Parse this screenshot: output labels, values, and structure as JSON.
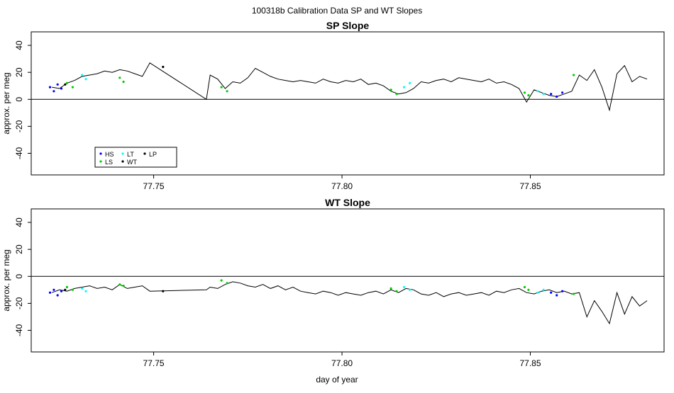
{
  "figure": {
    "title": "100318b   Calibration Data SP and WT Slopes",
    "xlabel": "day of year"
  },
  "chart_data": [
    {
      "type": "line",
      "title": "SP Slope",
      "ylabel": "approx. per meg",
      "xlim": [
        77.7175,
        77.8855
      ],
      "ylim": [
        -56,
        50
      ],
      "x_ticks": [
        "77.75",
        "77.80",
        "77.85"
      ],
      "x_tick_values": [
        77.75,
        77.8,
        77.85
      ],
      "y_ticks": [
        "-40",
        "-20",
        "0",
        "20",
        "40"
      ],
      "y_tick_values": [
        -40,
        -20,
        0,
        20,
        40
      ],
      "hline": 0,
      "legend": {
        "placement": "bottom-left",
        "entries": [
          {
            "label": "HS",
            "color": "#0000ff"
          },
          {
            "label": "LT",
            "color": "#00ffff"
          },
          {
            "label": "LP",
            "color": "#000000"
          },
          {
            "label": "LS",
            "color": "#00cc00"
          },
          {
            "label": "WT",
            "color": "#000000"
          }
        ]
      },
      "series": [
        {
          "key": "WT",
          "color": "#000000",
          "x": [
            77.723,
            77.725,
            77.727,
            77.729,
            77.731,
            77.733,
            77.735,
            77.737,
            77.739,
            77.741,
            77.743,
            77.745,
            77.747,
            77.749,
            77.764,
            77.765,
            77.767,
            77.769,
            77.771,
            77.773,
            77.775,
            77.777,
            77.779,
            77.781,
            77.783,
            77.785,
            77.787,
            77.789,
            77.791,
            77.793,
            77.795,
            77.797,
            77.799,
            77.801,
            77.803,
            77.805,
            77.807,
            77.809,
            77.811,
            77.813,
            77.815,
            77.817,
            77.819,
            77.821,
            77.823,
            77.825,
            77.827,
            77.829,
            77.831,
            77.833,
            77.835,
            77.837,
            77.839,
            77.841,
            77.843,
            77.845,
            77.847,
            77.849,
            77.851,
            77.853,
            77.855,
            77.857,
            77.859,
            77.861,
            77.863,
            77.865,
            77.867,
            77.869,
            77.871,
            77.873,
            77.875,
            77.877,
            77.879,
            77.881
          ],
          "y": [
            9,
            8,
            12,
            14,
            17,
            18,
            19,
            21,
            20,
            22,
            21,
            19,
            17,
            27,
            0,
            18,
            15,
            8,
            13,
            12,
            16,
            23,
            20,
            17,
            15,
            14,
            13,
            14,
            13,
            12,
            15,
            13,
            12,
            14,
            13,
            15,
            11,
            12,
            10,
            6,
            4,
            5,
            8,
            13,
            12,
            14,
            15,
            13,
            16,
            15,
            14,
            13,
            15,
            12,
            13,
            11,
            8,
            -2,
            7,
            5,
            3,
            2,
            4,
            6,
            18,
            14,
            22,
            9,
            -8,
            19,
            25,
            13,
            17,
            15
          ]
        },
        {
          "key": "HS",
          "color": "#0000ff",
          "x": [
            77.7225,
            77.7235,
            77.7245,
            77.7255,
            77.8555,
            77.857,
            77.8585
          ],
          "y": [
            9,
            6,
            11,
            8,
            4,
            2,
            5
          ]
        },
        {
          "key": "LS",
          "color": "#00cc00",
          "x": [
            77.727,
            77.7285,
            77.741,
            77.742,
            77.768,
            77.7695,
            77.813,
            77.8145,
            77.8485,
            77.8495,
            77.8615
          ],
          "y": [
            12,
            9,
            16,
            13,
            9,
            6,
            7,
            4,
            5,
            3,
            18
          ]
        },
        {
          "key": "LT",
          "color": "#00ffff",
          "x": [
            77.731,
            77.732,
            77.8165,
            77.818,
            77.852,
            77.8535
          ],
          "y": [
            18,
            15,
            9,
            12,
            6,
            4
          ]
        },
        {
          "key": "LP",
          "color": "#000000",
          "x": [
            77.7265,
            77.7525
          ],
          "y": [
            11,
            24
          ]
        }
      ]
    },
    {
      "type": "line",
      "title": "WT Slope",
      "ylabel": "approx. per meg",
      "xlim": [
        77.7175,
        77.8855
      ],
      "ylim": [
        -56,
        50
      ],
      "x_ticks": [
        "77.75",
        "77.80",
        "77.85"
      ],
      "x_tick_values": [
        77.75,
        77.8,
        77.85
      ],
      "y_ticks": [
        "-40",
        "-20",
        "0",
        "20",
        "40"
      ],
      "y_tick_values": [
        -40,
        -20,
        0,
        20,
        40
      ],
      "hline": 0,
      "series": [
        {
          "key": "WT",
          "color": "#000000",
          "x": [
            77.723,
            77.725,
            77.727,
            77.729,
            77.731,
            77.733,
            77.735,
            77.737,
            77.739,
            77.741,
            77.743,
            77.745,
            77.747,
            77.749,
            77.764,
            77.765,
            77.767,
            77.769,
            77.771,
            77.773,
            77.775,
            77.777,
            77.779,
            77.781,
            77.783,
            77.785,
            77.787,
            77.789,
            77.791,
            77.793,
            77.795,
            77.797,
            77.799,
            77.801,
            77.803,
            77.805,
            77.807,
            77.809,
            77.811,
            77.813,
            77.815,
            77.817,
            77.819,
            77.821,
            77.823,
            77.825,
            77.827,
            77.829,
            77.831,
            77.833,
            77.835,
            77.837,
            77.839,
            77.841,
            77.843,
            77.845,
            77.847,
            77.849,
            77.851,
            77.853,
            77.855,
            77.857,
            77.859,
            77.861,
            77.863,
            77.865,
            77.867,
            77.869,
            77.871,
            77.873,
            77.875,
            77.877,
            77.879,
            77.881
          ],
          "y": [
            -12,
            -10,
            -11,
            -9,
            -8,
            -7,
            -9,
            -8,
            -10,
            -6,
            -9,
            -8,
            -7,
            -11,
            -10,
            -8,
            -9,
            -6,
            -4,
            -5,
            -7,
            -8,
            -6,
            -9,
            -7,
            -10,
            -8,
            -11,
            -12,
            -13,
            -11,
            -12,
            -14,
            -12,
            -13,
            -14,
            -12,
            -11,
            -13,
            -10,
            -12,
            -9,
            -10,
            -13,
            -14,
            -12,
            -15,
            -13,
            -12,
            -14,
            -13,
            -12,
            -14,
            -11,
            -12,
            -10,
            -9,
            -12,
            -13,
            -11,
            -10,
            -12,
            -11,
            -13,
            -12,
            -30,
            -18,
            -26,
            -35,
            -12,
            -28,
            -15,
            -22,
            -18
          ]
        },
        {
          "key": "HS",
          "color": "#0000ff",
          "x": [
            77.7225,
            77.7235,
            77.7245,
            77.7255,
            77.8555,
            77.857,
            77.8585
          ],
          "y": [
            -12,
            -10,
            -14,
            -11,
            -12,
            -14,
            -11
          ]
        },
        {
          "key": "LS",
          "color": "#00cc00",
          "x": [
            77.727,
            77.7285,
            77.741,
            77.742,
            77.768,
            77.7695,
            77.813,
            77.8145,
            77.8485,
            77.8495,
            77.8615
          ],
          "y": [
            -8,
            -10,
            -6,
            -7,
            -3,
            -5,
            -9,
            -11,
            -8,
            -10,
            -13
          ]
        },
        {
          "key": "LT",
          "color": "#00ffff",
          "x": [
            77.731,
            77.732,
            77.8165,
            77.818,
            77.852,
            77.8535
          ],
          "y": [
            -9,
            -11,
            -8,
            -10,
            -12,
            -10
          ]
        },
        {
          "key": "LP",
          "color": "#000000",
          "x": [
            77.7265,
            77.7525
          ],
          "y": [
            -10,
            -11
          ]
        }
      ]
    }
  ]
}
